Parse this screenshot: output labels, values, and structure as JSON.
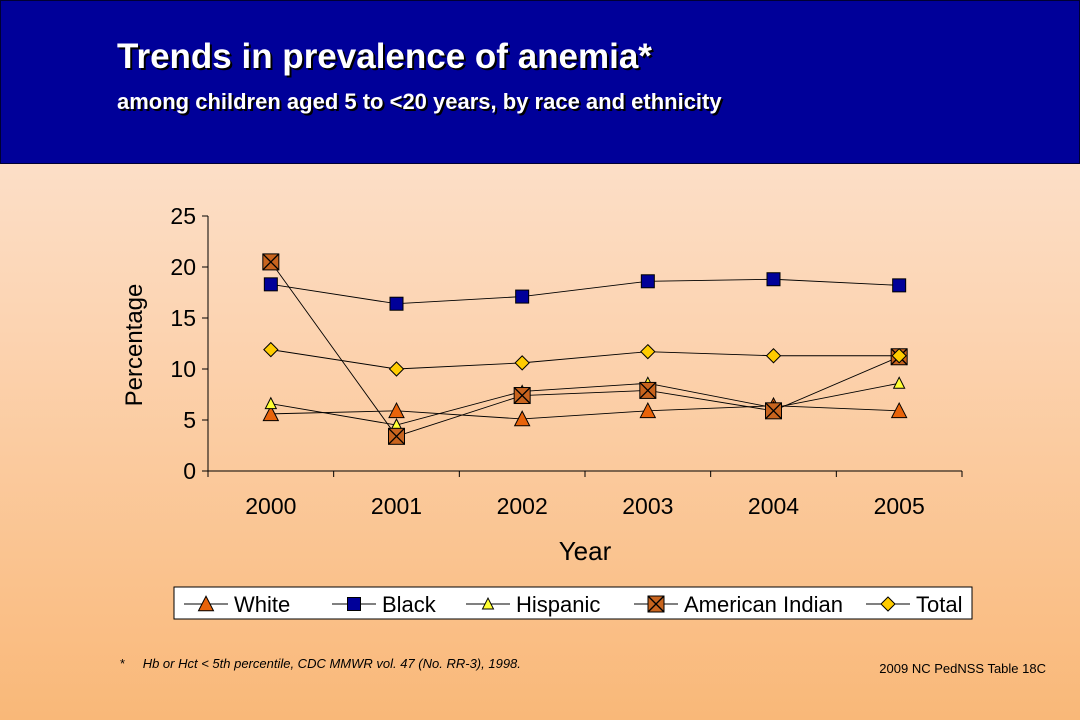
{
  "header": {
    "title": "Trends in prevalence of anemia*",
    "subtitle": "among children aged 5 to <20 years, by race and ethnicity"
  },
  "footnote": {
    "marker": "*",
    "text": "Hb or Hct < 5th percentile, CDC MMWR vol. 47 (No. RR-3), 1998."
  },
  "source": "2009 NC PedNSS Table 18C",
  "chart_data": {
    "type": "line",
    "title": "",
    "xlabel": "Year",
    "ylabel": "Percentage",
    "categories": [
      "2000",
      "2001",
      "2002",
      "2003",
      "2004",
      "2005"
    ],
    "ylim": [
      0,
      25
    ],
    "yticks": [
      0,
      5,
      10,
      15,
      20,
      25
    ],
    "grid": false,
    "legend_position": "bottom",
    "series": [
      {
        "name": "White",
        "values": [
          5.6,
          5.9,
          5.1,
          5.9,
          6.4,
          5.9
        ],
        "marker": "triangle",
        "color": "#e8630a",
        "size": "large"
      },
      {
        "name": "Black",
        "values": [
          18.3,
          16.4,
          17.1,
          18.6,
          18.8,
          18.2
        ],
        "marker": "square",
        "color": "#000099",
        "size": "large"
      },
      {
        "name": "Hispanic",
        "values": [
          6.6,
          4.5,
          7.8,
          8.6,
          6.2,
          8.6
        ],
        "marker": "triangle",
        "color": "#ffff33",
        "size": "small"
      },
      {
        "name": "American Indian",
        "values": [
          20.5,
          3.4,
          7.4,
          7.9,
          5.9,
          11.2
        ],
        "marker": "xsquare",
        "color": "#c8641e",
        "size": "large"
      },
      {
        "name": "Total",
        "values": [
          11.9,
          10.0,
          10.6,
          11.7,
          11.3,
          11.3
        ],
        "marker": "diamond",
        "color": "#ffcc00",
        "size": "medium"
      }
    ]
  }
}
